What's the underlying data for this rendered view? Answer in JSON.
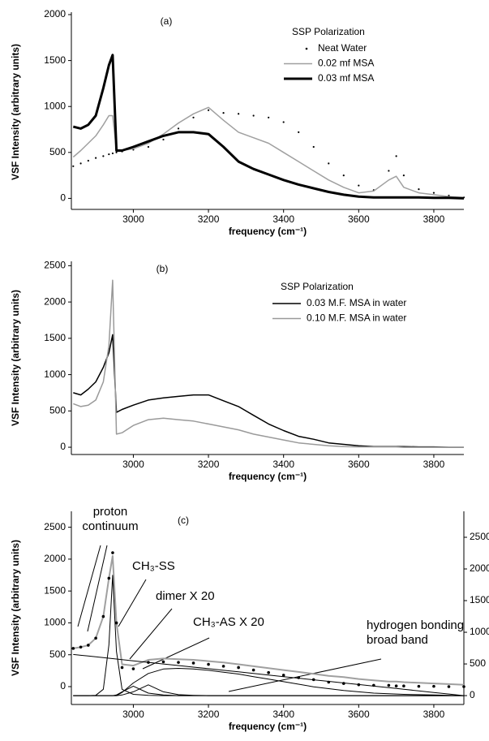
{
  "chart_data": [
    {
      "type": "line",
      "label": "(a)",
      "xlabel": "frequency (cm⁻¹)",
      "ylabel": "VSF Intensity (arbitrary units)",
      "xlim": [
        2835,
        3880
      ],
      "xticks": [
        3000,
        3200,
        3400,
        3600,
        3800
      ],
      "ylim": [
        -120,
        2000
      ],
      "yticks": [
        0,
        500,
        1000,
        1500,
        2000
      ],
      "legend": "top-right",
      "legend_title": "SSP Polarization",
      "x": [
        2840,
        2860,
        2880,
        2900,
        2920,
        2935,
        2945,
        2955,
        2970,
        3000,
        3040,
        3080,
        3120,
        3160,
        3200,
        3240,
        3280,
        3320,
        3360,
        3400,
        3440,
        3480,
        3520,
        3560,
        3600,
        3640,
        3680,
        3700,
        3720,
        3760,
        3800,
        3840,
        3880
      ],
      "series": [
        {
          "name": "Neat Water",
          "color": "#000000",
          "marker": true,
          "width": 1,
          "values": [
            350,
            380,
            410,
            440,
            460,
            480,
            490,
            500,
            510,
            530,
            560,
            640,
            760,
            880,
            960,
            930,
            920,
            900,
            880,
            830,
            720,
            560,
            380,
            250,
            140,
            90,
            300,
            460,
            250,
            100,
            60,
            30,
            10
          ]
        },
        {
          "name": "0.02 mf MSA",
          "color": "#a0a0a0",
          "marker": false,
          "width": 1.5,
          "values": [
            450,
            520,
            600,
            680,
            800,
            900,
            900,
            520,
            520,
            540,
            600,
            700,
            820,
            920,
            990,
            850,
            720,
            660,
            600,
            500,
            400,
            300,
            200,
            120,
            60,
            80,
            200,
            240,
            120,
            60,
            40,
            20,
            10
          ]
        },
        {
          "name": "0.03 mf MSA",
          "color": "#000000",
          "marker": false,
          "width": 3,
          "values": [
            780,
            760,
            800,
            900,
            1200,
            1450,
            1560,
            520,
            520,
            560,
            620,
            680,
            720,
            720,
            700,
            560,
            400,
            320,
            260,
            200,
            150,
            110,
            70,
            40,
            20,
            10,
            10,
            10,
            10,
            10,
            5,
            5,
            0
          ]
        }
      ]
    },
    {
      "type": "line",
      "label": "(b)",
      "xlabel": "frequency (cm⁻¹)",
      "ylabel": "VSF Intensity (arbitrary units)",
      "xlim": [
        2835,
        3880
      ],
      "xticks": [
        3000,
        3200,
        3400,
        3600,
        3800
      ],
      "ylim": [
        -100,
        2560
      ],
      "yticks": [
        0,
        500,
        1000,
        1500,
        2000,
        2500
      ],
      "legend": "top-right",
      "legend_title": "SSP Polarization",
      "x": [
        2840,
        2860,
        2880,
        2900,
        2920,
        2935,
        2945,
        2955,
        2970,
        3000,
        3040,
        3080,
        3120,
        3160,
        3200,
        3240,
        3280,
        3320,
        3360,
        3400,
        3440,
        3480,
        3520,
        3560,
        3600,
        3640,
        3680,
        3700,
        3720,
        3760,
        3800,
        3840,
        3880
      ],
      "series": [
        {
          "name": "0.03 M.F. MSA in water",
          "color": "#000000",
          "marker": false,
          "width": 1.5,
          "values": [
            750,
            720,
            800,
            900,
            1100,
            1300,
            1550,
            480,
            520,
            580,
            650,
            680,
            700,
            720,
            720,
            640,
            560,
            440,
            320,
            230,
            150,
            110,
            60,
            40,
            20,
            10,
            10,
            10,
            10,
            5,
            5,
            0,
            0
          ]
        },
        {
          "name": "0.10 M.F. MSA in water",
          "color": "#9a9a9a",
          "marker": false,
          "width": 1.5,
          "values": [
            600,
            560,
            580,
            650,
            900,
            1400,
            2300,
            180,
            200,
            300,
            380,
            400,
            380,
            360,
            320,
            280,
            240,
            180,
            140,
            100,
            60,
            40,
            20,
            10,
            5,
            5,
            5,
            5,
            0,
            0,
            0,
            0,
            0
          ]
        }
      ]
    },
    {
      "type": "line",
      "label": "(c)",
      "xlabel": "frequency (cm⁻¹)",
      "ylabel": "VSF Intensity (arbitrary units)",
      "xlim": [
        2835,
        3880
      ],
      "xticks": [
        3000,
        3200,
        3400,
        3600,
        3800
      ],
      "ylim": [
        -280,
        2750
      ],
      "yticks": [
        0,
        500,
        1000,
        1500,
        2000,
        2500
      ],
      "y2lim": [
        -140,
        2910
      ],
      "y2ticks": [
        0,
        500,
        1000,
        1500,
        2000,
        2500
      ],
      "legend": "none",
      "x": [
        2840,
        2860,
        2880,
        2900,
        2920,
        2935,
        2945,
        2955,
        2970,
        3000,
        3040,
        3080,
        3120,
        3160,
        3200,
        3240,
        3280,
        3320,
        3360,
        3400,
        3440,
        3480,
        3520,
        3560,
        3600,
        3640,
        3680,
        3700,
        3720,
        3760,
        3800,
        3840,
        3880
      ],
      "series": [
        {
          "color": "#a0a0a0",
          "marker": false,
          "width": 2,
          "values": [
            600,
            620,
            650,
            760,
            1100,
            1700,
            2050,
            1000,
            350,
            330,
            420,
            440,
            430,
            420,
            400,
            380,
            350,
            320,
            290,
            260,
            230,
            200,
            170,
            150,
            120,
            100,
            80,
            80,
            70,
            60,
            50,
            40,
            30
          ]
        },
        {
          "color": "#000000",
          "marker": true,
          "width": 1,
          "values": [
            600,
            620,
            650,
            760,
            1100,
            1700,
            2100,
            1000,
            300,
            280,
            380,
            390,
            380,
            370,
            350,
            320,
            300,
            260,
            220,
            180,
            140,
            110,
            70,
            50,
            30,
            20,
            20,
            10,
            10,
            5,
            5,
            0,
            0
          ]
        },
        {
          "name": "proton continuum",
          "color": "#000000",
          "marker": false,
          "width": 1,
          "axis": "y2",
          "values": [
            650,
            637,
            625,
            613,
            600,
            591,
            584,
            578,
            569,
            550,
            525,
            500,
            475,
            450,
            425,
            400,
            375,
            350,
            325,
            300,
            275,
            250,
            225,
            200,
            175,
            150,
            125,
            113,
            100,
            75,
            50,
            25,
            0
          ]
        },
        {
          "name": "CH₃-SS",
          "color": "#000000",
          "marker": false,
          "width": 1,
          "axis": "y2",
          "values": [
            0,
            0,
            0,
            5,
            100,
            800,
            1900,
            700,
            100,
            20,
            5,
            0,
            0,
            0,
            0,
            0,
            0,
            0,
            0,
            0,
            0,
            0,
            0,
            0,
            0,
            0,
            0,
            0,
            0,
            0,
            0,
            0,
            0
          ]
        },
        {
          "name": "dimer X 20",
          "color": "#000000",
          "marker": false,
          "width": 1,
          "axis": "y2",
          "values": [
            0,
            0,
            0,
            0,
            0,
            0,
            0,
            10,
            60,
            150,
            40,
            10,
            0,
            0,
            0,
            0,
            0,
            0,
            0,
            0,
            0,
            0,
            0,
            0,
            0,
            0,
            0,
            0,
            0,
            0,
            0,
            0,
            0
          ]
        },
        {
          "name": "CH₃-AS X 20",
          "color": "#000000",
          "marker": false,
          "width": 1,
          "axis": "y2",
          "values": [
            0,
            0,
            0,
            0,
            0,
            0,
            0,
            0,
            10,
            60,
            170,
            60,
            15,
            5,
            0,
            0,
            0,
            0,
            0,
            0,
            0,
            0,
            0,
            0,
            0,
            0,
            0,
            0,
            0,
            0,
            0,
            0,
            0
          ]
        },
        {
          "name": "hydrogen bonding broad band",
          "color": "#000000",
          "marker": false,
          "width": 1,
          "axis": "y2",
          "values": [
            0,
            0,
            0,
            0,
            0,
            0,
            0,
            0,
            50,
            200,
            350,
            420,
            430,
            420,
            400,
            370,
            340,
            300,
            260,
            220,
            180,
            140,
            110,
            80,
            60,
            40,
            30,
            25,
            20,
            15,
            10,
            5,
            0
          ]
        }
      ]
    }
  ]
}
